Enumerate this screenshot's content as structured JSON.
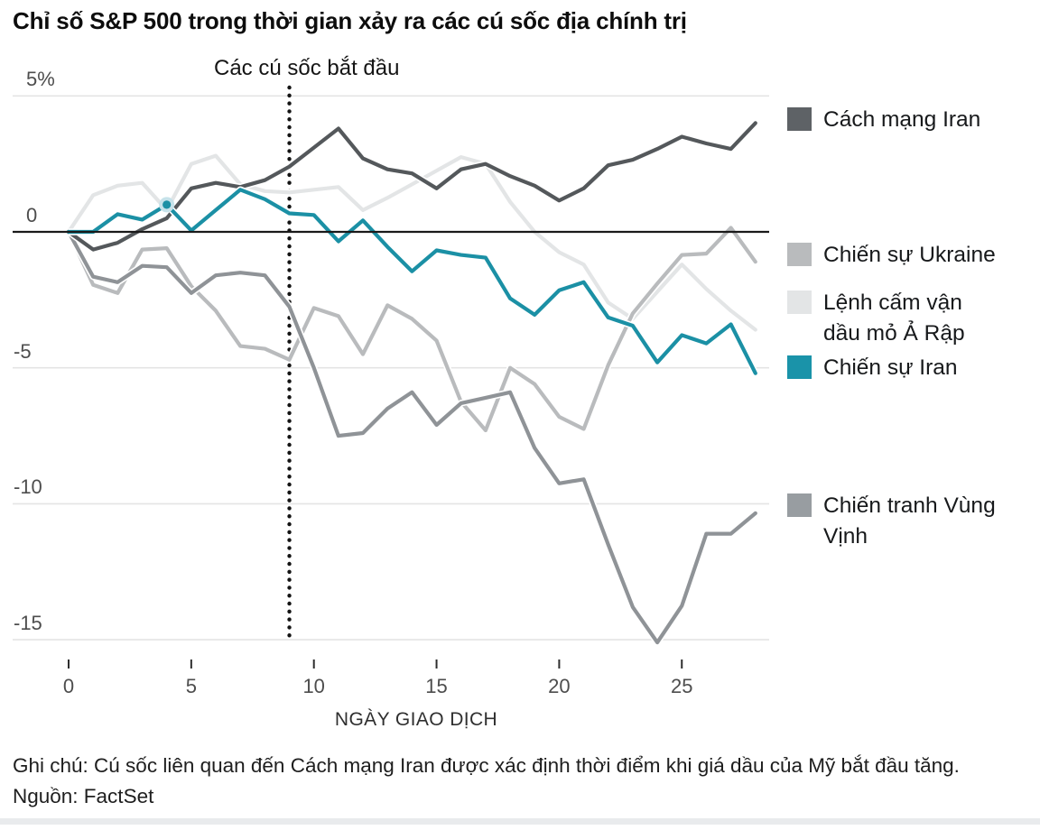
{
  "title": "Chỉ số S&P 500 trong thời gian xảy ra các cú sốc địa chính trị",
  "chart_data": {
    "type": "line",
    "xlabel": "NGÀY GIAO DỊCH",
    "x_ticks": [
      0,
      5,
      10,
      15,
      20,
      25
    ],
    "y_ticks": [
      {
        "label": "5%",
        "value": 5
      },
      {
        "label": "0",
        "value": 0
      },
      {
        "label": "-5",
        "value": -5
      },
      {
        "label": "-10",
        "value": -10
      },
      {
        "label": "-15",
        "value": -15
      }
    ],
    "xlim": [
      0,
      28
    ],
    "ylim": [
      -16.3,
      5.3
    ],
    "grid": "horizontal",
    "legend_position": "right",
    "annotation": {
      "text": "Các cú sốc bắt đầu",
      "day": 9,
      "line_style": "dotted"
    },
    "x": [
      0,
      1,
      2,
      3,
      4,
      5,
      6,
      7,
      8,
      9,
      10,
      11,
      12,
      13,
      14,
      15,
      16,
      17,
      18,
      19,
      20,
      21,
      22,
      23,
      24,
      25,
      26,
      27,
      28
    ],
    "series": [
      {
        "name": "Lệnh cấm vận dầu mỏ Ả Rập",
        "color": "#e3e5e6",
        "values": [
          0,
          1.35,
          1.7,
          1.8,
          0.8,
          2.5,
          2.8,
          1.75,
          1.5,
          1.45,
          1.55,
          1.65,
          0.8,
          1.25,
          1.75,
          2.25,
          2.75,
          2.5,
          1.1,
          0.0,
          -0.75,
          -1.2,
          -2.6,
          -3.2,
          -2.2,
          -1.2,
          -2.1,
          -2.9,
          -3.6
        ]
      },
      {
        "name": "Chiến sự Ukraine",
        "color": "#b9bbbd",
        "values": [
          0,
          -1.95,
          -2.25,
          -0.65,
          -0.6,
          -2.0,
          -2.9,
          -4.2,
          -4.3,
          -4.7,
          -2.8,
          -3.1,
          -4.5,
          -2.7,
          -3.2,
          -4.0,
          -6.25,
          -7.3,
          -5.0,
          -5.6,
          -6.8,
          -7.25,
          -4.9,
          -3.0,
          -1.9,
          -0.85,
          -0.8,
          0.15,
          -1.1
        ]
      },
      {
        "name": "Chiến tranh Vùng Vịnh",
        "color": "#8f9397",
        "values": [
          0,
          -1.65,
          -1.85,
          -1.25,
          -1.3,
          -2.25,
          -1.6,
          -1.5,
          -1.6,
          -2.75,
          -5.0,
          -7.5,
          -7.4,
          -6.5,
          -5.9,
          -7.1,
          -6.3,
          -6.1,
          -5.9,
          -7.95,
          -9.25,
          -9.1,
          -11.5,
          -13.8,
          -15.1,
          -13.75,
          -11.1,
          -11.1,
          -10.35
        ]
      },
      {
        "name": "Cách mạng Iran",
        "color": "#54585b",
        "values": [
          0,
          -0.65,
          -0.4,
          0.1,
          0.5,
          1.6,
          1.8,
          1.65,
          1.9,
          2.4,
          3.1,
          3.8,
          2.7,
          2.3,
          2.15,
          1.6,
          2.3,
          2.5,
          2.05,
          1.7,
          1.15,
          1.6,
          2.45,
          2.65,
          3.05,
          3.5,
          3.25,
          3.05,
          4.0
        ]
      },
      {
        "name": "Chiến sự Iran",
        "color": "#1b90a5",
        "marker_day": 4,
        "values": [
          0,
          0.0,
          0.65,
          0.45,
          1.0,
          0.05,
          0.8,
          1.55,
          1.2,
          0.68,
          0.62,
          -0.35,
          0.42,
          -0.55,
          -1.45,
          -0.68,
          -0.85,
          -0.95,
          -2.45,
          -3.05,
          -2.15,
          -1.85,
          -3.15,
          -3.45,
          -4.8,
          -3.8,
          -4.1,
          -3.4,
          -5.2
        ]
      }
    ]
  },
  "legend": [
    {
      "label": "Cách mạng Iran",
      "color": "#5e6266"
    },
    {
      "label": "Chiến sự Ukraine",
      "color": "#b9bbbd"
    },
    {
      "label": "Lệnh cấm vận\ndầu mỏ Ả Rập",
      "color": "#e3e5e6"
    },
    {
      "label": "Chiến sự Iran",
      "color": "#1a93a9"
    },
    {
      "label": "Chiến tranh Vùng Vịnh",
      "color": "#989da1"
    }
  ],
  "footer": {
    "note": "Ghi chú: Cú sốc liên quan đến Cách mạng Iran được xác định thời điểm khi giá dầu của Mỹ bắt đầu tăng.",
    "source": "Nguồn: FactSet"
  }
}
